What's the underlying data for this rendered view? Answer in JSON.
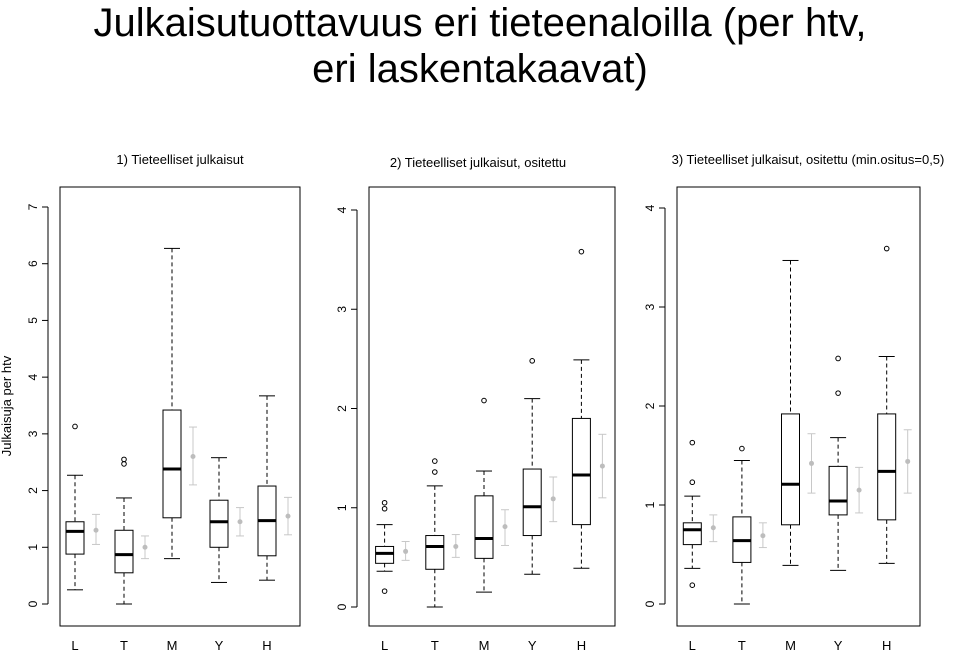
{
  "title_line1": "Julkaisutuottavuus eri tieteenaloilla (per htv,",
  "title_line2": "eri laskentakaavat)",
  "y_axis_label": "Julkaisuja per htv",
  "chart_data": [
    {
      "type": "boxplot",
      "title": "1) Tieteelliset julkaisut",
      "ylabel": "Julkaisuja per htv",
      "ylim": [
        0,
        7
      ],
      "yticks": [
        0,
        1,
        2,
        3,
        4,
        5,
        6,
        7
      ],
      "categories": [
        "L",
        "T",
        "M",
        "Y",
        "H"
      ],
      "boxes": [
        {
          "whisker_low": 0.25,
          "q1": 0.88,
          "median": 1.28,
          "q3": 1.45,
          "whisker_high": 2.27,
          "outliers": [
            3.13
          ],
          "mean": 1.3,
          "ci": [
            1.05,
            1.58
          ]
        },
        {
          "whisker_low": 0.0,
          "q1": 0.55,
          "median": 0.87,
          "q3": 1.3,
          "whisker_high": 1.87,
          "outliers": [
            2.47,
            2.55
          ],
          "mean": 1.0,
          "ci": [
            0.8,
            1.2
          ]
        },
        {
          "whisker_low": 0.8,
          "q1": 1.52,
          "median": 2.38,
          "q3": 3.42,
          "whisker_high": 6.27,
          "outliers": [],
          "mean": 2.6,
          "ci": [
            2.1,
            3.12
          ]
        },
        {
          "whisker_low": 0.38,
          "q1": 1.0,
          "median": 1.45,
          "q3": 1.83,
          "whisker_high": 2.58,
          "outliers": [],
          "mean": 1.45,
          "ci": [
            1.2,
            1.7
          ]
        },
        {
          "whisker_low": 0.42,
          "q1": 0.85,
          "median": 1.47,
          "q3": 2.08,
          "whisker_high": 3.67,
          "outliers": [],
          "mean": 1.55,
          "ci": [
            1.22,
            1.88
          ]
        }
      ]
    },
    {
      "type": "boxplot",
      "title": "2) Tieteelliset julkaisut, ositettu",
      "ylim": [
        0,
        4
      ],
      "yticks": [
        0,
        1,
        2,
        3,
        4
      ],
      "categories": [
        "L",
        "T",
        "M",
        "Y",
        "H"
      ],
      "boxes": [
        {
          "whisker_low": 0.36,
          "q1": 0.44,
          "median": 0.54,
          "q3": 0.61,
          "whisker_high": 0.83,
          "outliers": [
            0.16,
            0.99,
            1.05
          ],
          "mean": 0.56,
          "ci": [
            0.47,
            0.66
          ]
        },
        {
          "whisker_low": 0.0,
          "q1": 0.38,
          "median": 0.61,
          "q3": 0.72,
          "whisker_high": 1.22,
          "outliers": [
            1.36,
            1.47
          ],
          "mean": 0.61,
          "ci": [
            0.5,
            0.73
          ]
        },
        {
          "whisker_low": 0.15,
          "q1": 0.49,
          "median": 0.69,
          "q3": 1.12,
          "whisker_high": 1.37,
          "outliers": [
            2.08
          ],
          "mean": 0.81,
          "ci": [
            0.62,
            0.98
          ]
        },
        {
          "whisker_low": 0.33,
          "q1": 0.72,
          "median": 1.01,
          "q3": 1.39,
          "whisker_high": 2.1,
          "outliers": [
            2.48
          ],
          "mean": 1.09,
          "ci": [
            0.86,
            1.31
          ]
        },
        {
          "whisker_low": 0.39,
          "q1": 0.83,
          "median": 1.33,
          "q3": 1.9,
          "whisker_high": 2.49,
          "outliers": [
            3.58
          ],
          "mean": 1.42,
          "ci": [
            1.1,
            1.74
          ]
        }
      ]
    },
    {
      "type": "boxplot",
      "title": "3) Tieteelliset julkaisut, ositettu (min.ositus=0,5)",
      "ylim": [
        0,
        4
      ],
      "yticks": [
        0,
        1,
        2,
        3,
        4
      ],
      "categories": [
        "L",
        "T",
        "M",
        "Y",
        "H"
      ],
      "boxes": [
        {
          "whisker_low": 0.36,
          "q1": 0.6,
          "median": 0.75,
          "q3": 0.82,
          "whisker_high": 1.09,
          "outliers": [
            0.19,
            1.23,
            1.63
          ],
          "mean": 0.77,
          "ci": [
            0.63,
            0.9
          ]
        },
        {
          "whisker_low": 0.0,
          "q1": 0.42,
          "median": 0.64,
          "q3": 0.88,
          "whisker_high": 1.45,
          "outliers": [
            1.57
          ],
          "mean": 0.69,
          "ci": [
            0.57,
            0.82
          ]
        },
        {
          "whisker_low": 0.39,
          "q1": 0.8,
          "median": 1.21,
          "q3": 1.92,
          "whisker_high": 3.47,
          "outliers": [],
          "mean": 1.42,
          "ci": [
            1.12,
            1.72
          ]
        },
        {
          "whisker_low": 0.34,
          "q1": 0.9,
          "median": 1.04,
          "q3": 1.39,
          "whisker_high": 1.68,
          "outliers": [
            2.13,
            2.48
          ],
          "mean": 1.15,
          "ci": [
            0.92,
            1.38
          ]
        },
        {
          "whisker_low": 0.41,
          "q1": 0.85,
          "median": 1.34,
          "q3": 1.92,
          "whisker_high": 2.5,
          "outliers": [
            3.59
          ],
          "mean": 1.44,
          "ci": [
            1.12,
            1.76
          ]
        }
      ]
    }
  ]
}
